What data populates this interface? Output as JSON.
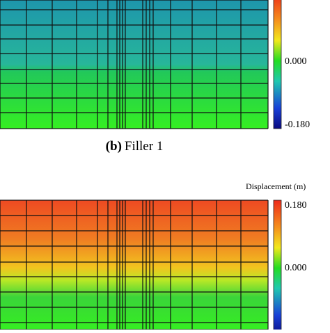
{
  "panels": [
    {
      "caption": {
        "letter": "(b)",
        "text": "Filler 1"
      },
      "colorbar": {
        "ticks": [
          "0.000",
          "-0.180"
        ]
      }
    },
    {
      "colorbar": {
        "title": "Displacement (m)",
        "ticks": [
          "0.180",
          "0.000"
        ]
      }
    }
  ]
}
